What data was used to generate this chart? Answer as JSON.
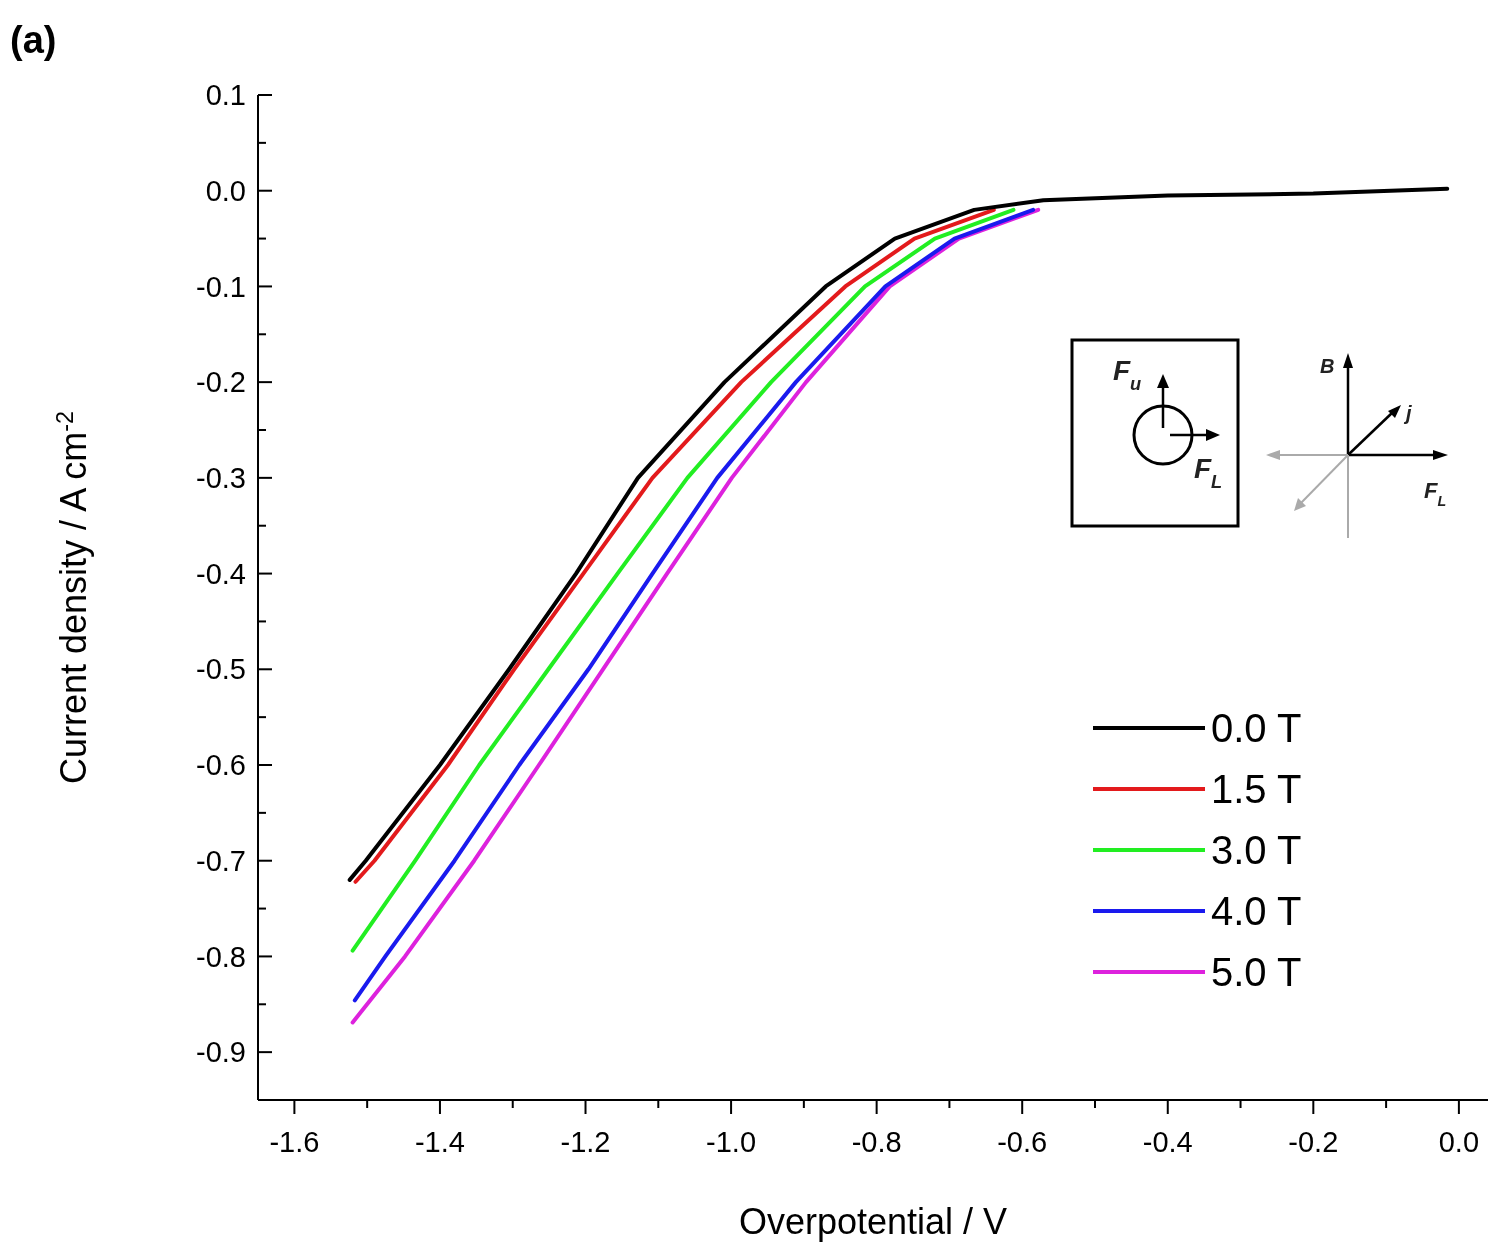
{
  "chart_data": {
    "type": "line",
    "title": "(a)",
    "xlabel": "Overpotential / V",
    "ylabel": "Current density / A cm$^{-2}$",
    "xlim": [
      -1.65,
      0.04
    ],
    "ylim": [
      -0.95,
      0.1
    ],
    "xticks": [
      {
        "value": -1.6,
        "label": "-1.6"
      },
      {
        "value": -1.5,
        "label": null
      },
      {
        "value": -1.4,
        "label": "-1.4"
      },
      {
        "value": -1.3,
        "label": null
      },
      {
        "value": -1.2,
        "label": "-1.2"
      },
      {
        "value": -1.1,
        "label": null
      },
      {
        "value": -1.0,
        "label": "-1.0"
      },
      {
        "value": -0.9,
        "label": null
      },
      {
        "value": -0.8,
        "label": "-0.8"
      },
      {
        "value": -0.7,
        "label": null
      },
      {
        "value": -0.6,
        "label": "-0.6"
      },
      {
        "value": -0.5,
        "label": null
      },
      {
        "value": -0.4,
        "label": "-0.4"
      },
      {
        "value": -0.3,
        "label": null
      },
      {
        "value": -0.2,
        "label": "-0.2"
      },
      {
        "value": -0.1,
        "label": null
      },
      {
        "value": 0,
        "label": "0.0"
      }
    ],
    "yticks": [
      {
        "value": -0.9,
        "label": "-0.9"
      },
      {
        "value": -0.85,
        "label": null
      },
      {
        "value": -0.8,
        "label": "-0.8"
      },
      {
        "value": -0.75,
        "label": null
      },
      {
        "value": -0.7,
        "label": "-0.7"
      },
      {
        "value": -0.65,
        "label": null
      },
      {
        "value": -0.6,
        "label": "-0.6"
      },
      {
        "value": -0.55,
        "label": null
      },
      {
        "value": -0.5,
        "label": "-0.5"
      },
      {
        "value": -0.45,
        "label": null
      },
      {
        "value": -0.4,
        "label": "-0.4"
      },
      {
        "value": -0.35,
        "label": null
      },
      {
        "value": -0.3,
        "label": "-0.3"
      },
      {
        "value": -0.25,
        "label": null
      },
      {
        "value": -0.2,
        "label": "-0.2"
      },
      {
        "value": -0.15,
        "label": null
      },
      {
        "value": -0.1,
        "label": "-0.1"
      },
      {
        "value": -0.05,
        "label": null
      },
      {
        "value": 0,
        "label": "0.0"
      },
      {
        "value": 0.05,
        "label": null
      },
      {
        "value": 0.1,
        "label": "0.1"
      }
    ],
    "legend": "bottom right",
    "grid": false,
    "marker": "none",
    "line_style": "solid",
    "series": [
      {
        "name": "0.0 T",
        "color": "#000000",
        "x": [
          -1.524,
          -1.502,
          -1.4,
          -1.305,
          -1.213,
          -1.128,
          -1.009,
          -0.87,
          -0.775,
          -0.666,
          -0.571,
          -0.4,
          -0.2,
          -0.016
        ],
        "values": [
          -0.72,
          -0.7,
          -0.6,
          -0.5,
          -0.4,
          -0.3,
          -0.2,
          -0.1,
          -0.05,
          -0.02,
          -0.01,
          -0.005,
          -0.003,
          0.002
        ]
      },
      {
        "name": "1.5 T",
        "color": "#e31a1c",
        "x": [
          -1.516,
          -1.49,
          -1.389,
          -1.298,
          -1.203,
          -1.108,
          -0.986,
          -0.843,
          -0.748,
          -0.639
        ],
        "values": [
          -0.722,
          -0.7,
          -0.6,
          -0.5,
          -0.4,
          -0.3,
          -0.2,
          -0.1,
          -0.05,
          -0.02
        ]
      },
      {
        "name": "3.0 T",
        "color": "#22ee22",
        "x": [
          -1.52,
          -1.434,
          -1.346,
          -1.251,
          -1.156,
          -1.06,
          -0.945,
          -0.816,
          -0.72,
          -0.612
        ],
        "values": [
          -0.794,
          -0.7,
          -0.6,
          -0.5,
          -0.4,
          -0.3,
          -0.2,
          -0.1,
          -0.05,
          -0.02
        ]
      },
      {
        "name": "4.0 T",
        "color": "#1a1aee",
        "x": [
          -1.517,
          -1.475,
          -1.38,
          -1.291,
          -1.196,
          -1.108,
          -1.019,
          -0.911,
          -0.788,
          -0.693,
          -0.585
        ],
        "values": [
          -0.846,
          -0.8,
          -0.7,
          -0.6,
          -0.5,
          -0.4,
          -0.3,
          -0.2,
          -0.1,
          -0.05,
          -0.02
        ]
      },
      {
        "name": "5.0 T",
        "color": "#dd22dd",
        "x": [
          -1.52,
          -1.448,
          -1.353,
          -1.264,
          -1.176,
          -1.088,
          -0.999,
          -0.897,
          -0.782,
          -0.687,
          -0.578
        ],
        "values": [
          -0.869,
          -0.8,
          -0.7,
          -0.6,
          -0.5,
          -0.4,
          -0.3,
          -0.2,
          -0.1,
          -0.05,
          -0.02
        ]
      }
    ],
    "annotations": [
      "F$_{u}$",
      "F$_{L}$",
      "B",
      "j",
      "F$_{L}$"
    ]
  }
}
